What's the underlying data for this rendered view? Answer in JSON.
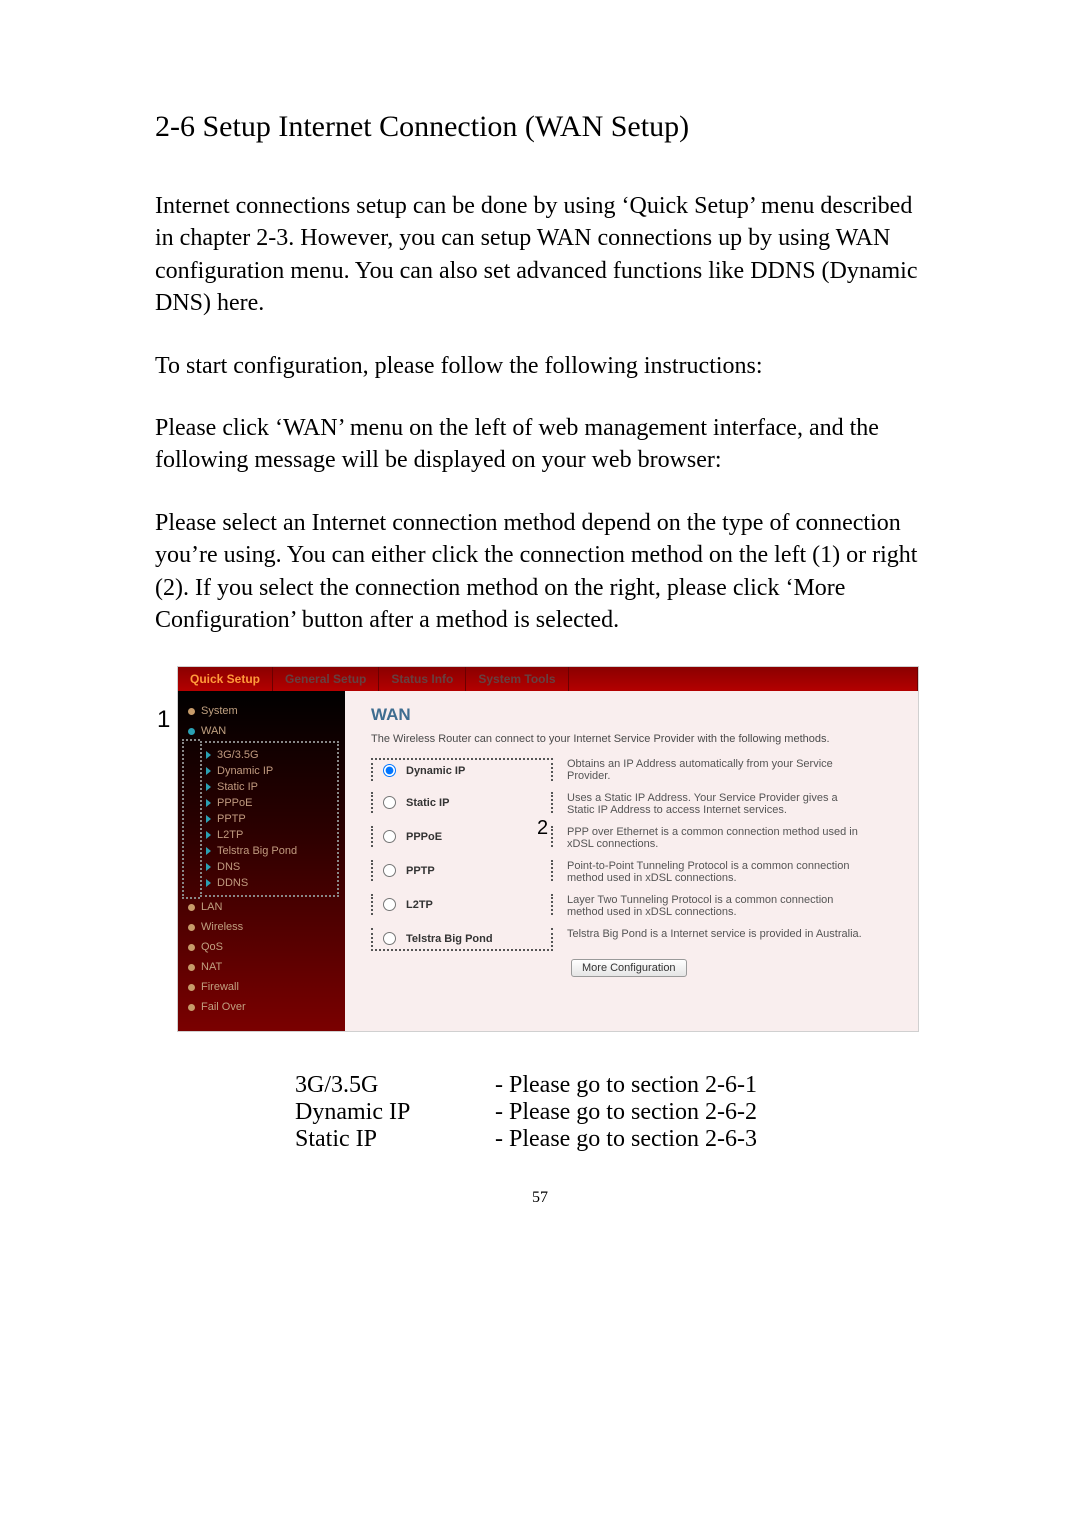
{
  "doc": {
    "section_title": "2-6 Setup Internet Connection (WAN Setup)",
    "para1": "Internet connections setup can be done by using ‘Quick Setup’ menu described in chapter 2-3. However, you can setup WAN connections up by using WAN configuration menu. You can also set advanced functions like DDNS (Dynamic DNS) here.",
    "para2": "To start configuration, please follow the following instructions:",
    "para3": "Please click ‘WAN’ menu on the left of web management interface, and the following message will be displayed on your web browser:",
    "para4": "Please select an Internet connection method depend on the type of connection you’re using. You can either click the connection method on the left (1) or right (2). If you select the connection method on the right, please click ‘More Configuration’ button after a method is selected.",
    "page_number": "57"
  },
  "markers": {
    "one": "1",
    "two": "2"
  },
  "ui": {
    "tabs": {
      "quick_setup": "Quick Setup",
      "general_setup": "General Setup",
      "status_info": "Status Info",
      "system_tools": "System Tools"
    },
    "sidebar": {
      "system": "System",
      "wan": "WAN",
      "sub": {
        "g3": "3G/3.5G",
        "dynamic_ip": "Dynamic IP",
        "static_ip": "Static IP",
        "pppoe": "PPPoE",
        "pptp": "PPTP",
        "l2tp": "L2TP",
        "telstra": "Telstra Big Pond",
        "dns": "DNS",
        "ddns": "DDNS"
      },
      "lan": "LAN",
      "wireless": "Wireless",
      "qos": "QoS",
      "nat": "NAT",
      "firewall": "Firewall",
      "failover": "Fail Over"
    },
    "content": {
      "heading": "WAN",
      "intro": "The Wireless Router can connect to your Internet Service Provider with the following methods.",
      "methods": {
        "m0": {
          "label": "Dynamic IP",
          "desc": "Obtains an IP Address automatically from your Service Provider."
        },
        "m1": {
          "label": "Static IP",
          "desc": "Uses a Static IP Address. Your Service Provider gives a Static IP Address to access Internet services."
        },
        "m2": {
          "label": "PPPoE",
          "desc": "PPP over Ethernet is a common connection method used in xDSL connections."
        },
        "m3": {
          "label": "PPTP",
          "desc": "Point-to-Point Tunneling Protocol is a common connection method used in xDSL connections."
        },
        "m4": {
          "label": "L2TP",
          "desc": "Layer Two Tunneling Protocol is a common connection method used in xDSL connections."
        },
        "m5": {
          "label": "Telstra Big Pond",
          "desc": "Telstra Big Pond is a Internet service is provided in Australia."
        }
      },
      "more_button": "More Configuration"
    }
  },
  "mapping": {
    "r0": {
      "left": "3G/3.5G",
      "right": "- Please go to section 2-6-1"
    },
    "r1": {
      "left": "Dynamic IP",
      "right": "- Please go to section 2-6-2"
    },
    "r2": {
      "left": "Static IP",
      "right": "- Please go to section 2-6-3"
    }
  }
}
